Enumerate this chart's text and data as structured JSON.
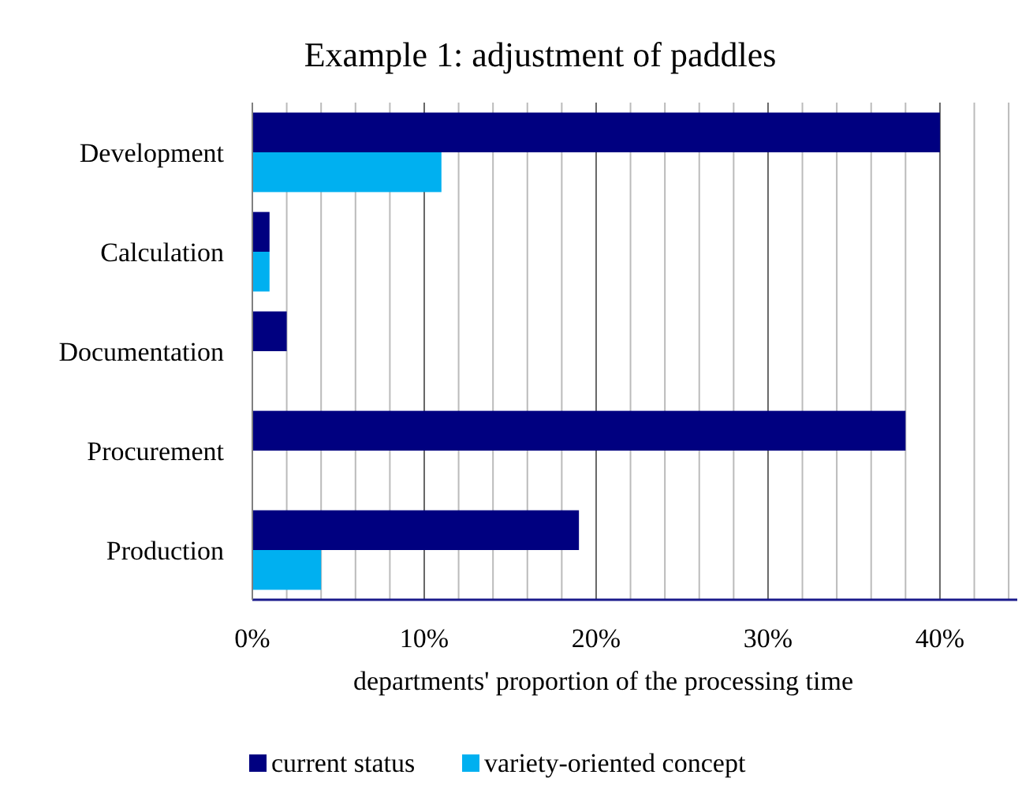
{
  "chart_data": {
    "type": "bar",
    "orientation": "horizontal",
    "title": "Example 1: adjustment of paddles",
    "xlabel": "departments' proportion of the processing time",
    "categories": [
      "Development",
      "Calculation",
      "Documentation",
      "Procurement",
      "Production"
    ],
    "series": [
      {
        "name": "current status",
        "color": "#000080",
        "values": [
          40,
          1,
          2,
          38,
          19
        ]
      },
      {
        "name": "variety-oriented concept",
        "color": "#00b0f0",
        "values": [
          11,
          1,
          0,
          0,
          4
        ]
      }
    ],
    "xlim": [
      0,
      44.5
    ],
    "xticks": [
      {
        "value": 0,
        "label": "0%"
      },
      {
        "value": 2,
        "label": null
      },
      {
        "value": 4,
        "label": null
      },
      {
        "value": 6,
        "label": null
      },
      {
        "value": 8,
        "label": null
      },
      {
        "value": 10,
        "label": "10%"
      },
      {
        "value": 12,
        "label": null
      },
      {
        "value": 14,
        "label": null
      },
      {
        "value": 16,
        "label": null
      },
      {
        "value": 18,
        "label": null
      },
      {
        "value": 20,
        "label": "20%"
      },
      {
        "value": 22,
        "label": null
      },
      {
        "value": 24,
        "label": null
      },
      {
        "value": 26,
        "label": null
      },
      {
        "value": 28,
        "label": null
      },
      {
        "value": 30,
        "label": "30%"
      },
      {
        "value": 32,
        "label": null
      },
      {
        "value": 34,
        "label": null
      },
      {
        "value": 36,
        "label": null
      },
      {
        "value": 38,
        "label": null
      },
      {
        "value": 40,
        "label": "40%"
      },
      {
        "value": 42,
        "label": null
      },
      {
        "value": 44,
        "label": null
      }
    ],
    "grid": "x",
    "legend": "bottom"
  }
}
